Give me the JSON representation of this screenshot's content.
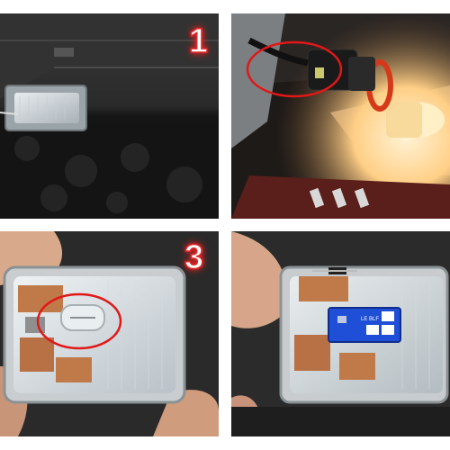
{
  "steps": {
    "step1": "1",
    "step3": "3"
  },
  "led_board": {
    "label": "LE BLF"
  },
  "colors": {
    "highlight_circle": "#e01818",
    "step_number_glow": "#e02020",
    "bulb_glow": "#ffd27a",
    "led_pcb": "#1f4fd6"
  }
}
